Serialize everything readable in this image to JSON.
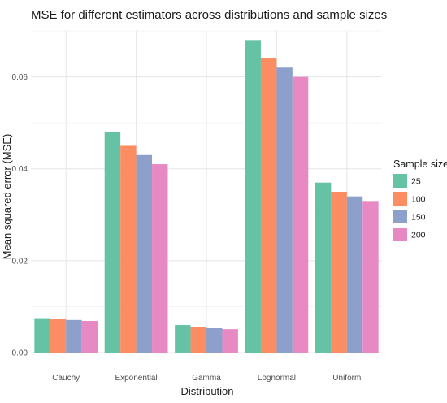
{
  "chart_data": {
    "type": "bar",
    "title": "MSE for different estimators across distributions and sample sizes",
    "xlabel": "Distribution",
    "ylabel": "Mean squared error (MSE)",
    "categories": [
      "Cauchy",
      "Exponential",
      "Gamma",
      "Lognormal",
      "Uniform"
    ],
    "ylim": [
      0,
      0.07
    ],
    "yticks": [
      0.0,
      0.02,
      0.04,
      0.06
    ],
    "ytick_labels": [
      "0.00",
      "0.02",
      "0.04",
      "0.06"
    ],
    "grid": true,
    "legend": {
      "title": "Sample size",
      "position": "right"
    },
    "series": [
      {
        "name": "25",
        "color": "#66c2a5",
        "values": [
          0.0075,
          0.048,
          0.006,
          0.068,
          0.037
        ]
      },
      {
        "name": "100",
        "color": "#fc8d62",
        "values": [
          0.0073,
          0.045,
          0.0055,
          0.064,
          0.035
        ]
      },
      {
        "name": "150",
        "color": "#8da0cb",
        "values": [
          0.0071,
          0.043,
          0.0053,
          0.062,
          0.034
        ]
      },
      {
        "name": "200",
        "color": "#e78ac3",
        "values": [
          0.0069,
          0.041,
          0.0051,
          0.06,
          0.033
        ]
      }
    ]
  }
}
